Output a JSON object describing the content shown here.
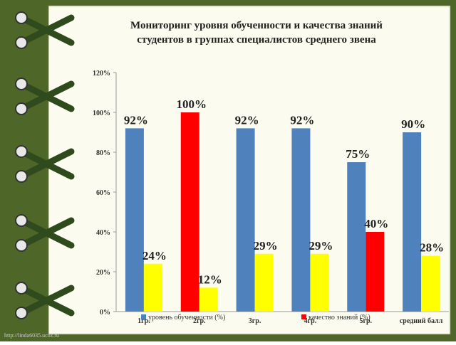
{
  "chart_data": {
    "type": "bar",
    "title": "Мониторинг уровня обученности и качества знаний студентов в группах специалистов среднего звена",
    "categories": [
      "1гр.",
      "2гр.",
      "3гр.",
      "4гр.",
      "5гр.",
      "средний балл"
    ],
    "series": [
      {
        "name": "уровень обученности (%)",
        "color": "#4f81bd",
        "colors": [
          "#4f81bd",
          "#ff0000",
          "#4f81bd",
          "#4f81bd",
          "#4f81bd",
          "#4f81bd"
        ],
        "values": [
          92,
          100,
          92,
          92,
          75,
          90
        ],
        "value_labels": [
          "92%",
          "100%",
          "92%",
          "92%",
          "75%",
          "90%"
        ]
      },
      {
        "name": "качество знаний (%)",
        "color": "#ff0000",
        "colors": [
          "#ffff00",
          "#ffff00",
          "#ffff00",
          "#ffff00",
          "#ff0000",
          "#ffff00"
        ],
        "values": [
          24,
          12,
          29,
          29,
          40,
          28
        ],
        "value_labels": [
          "24%",
          "12%",
          "29%",
          "29%",
          "40%",
          "28%"
        ]
      }
    ],
    "ylim": [
      0,
      120
    ],
    "yticks": [
      {
        "value": 0,
        "label": "0%"
      },
      {
        "value": 20,
        "label": "20%"
      },
      {
        "value": 40,
        "label": "40%"
      },
      {
        "value": 60,
        "label": "60%"
      },
      {
        "value": 80,
        "label": "80%"
      },
      {
        "value": 100,
        "label": "100%"
      },
      {
        "value": 120,
        "label": "120%"
      }
    ],
    "legend": "bottom",
    "watermark": "http://linda6035.ucoz.ru"
  }
}
